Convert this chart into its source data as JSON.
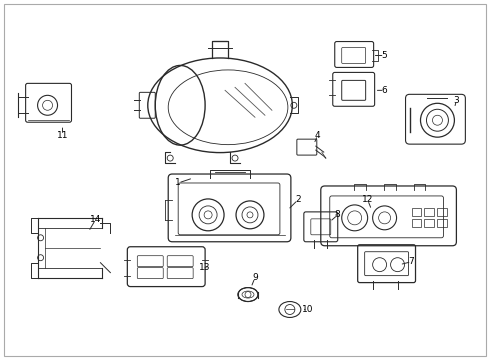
{
  "background_color": "#ffffff",
  "line_color": "#2a2a2a",
  "label_color": "#000000",
  "figwidth": 4.9,
  "figheight": 3.6,
  "dpi": 100
}
